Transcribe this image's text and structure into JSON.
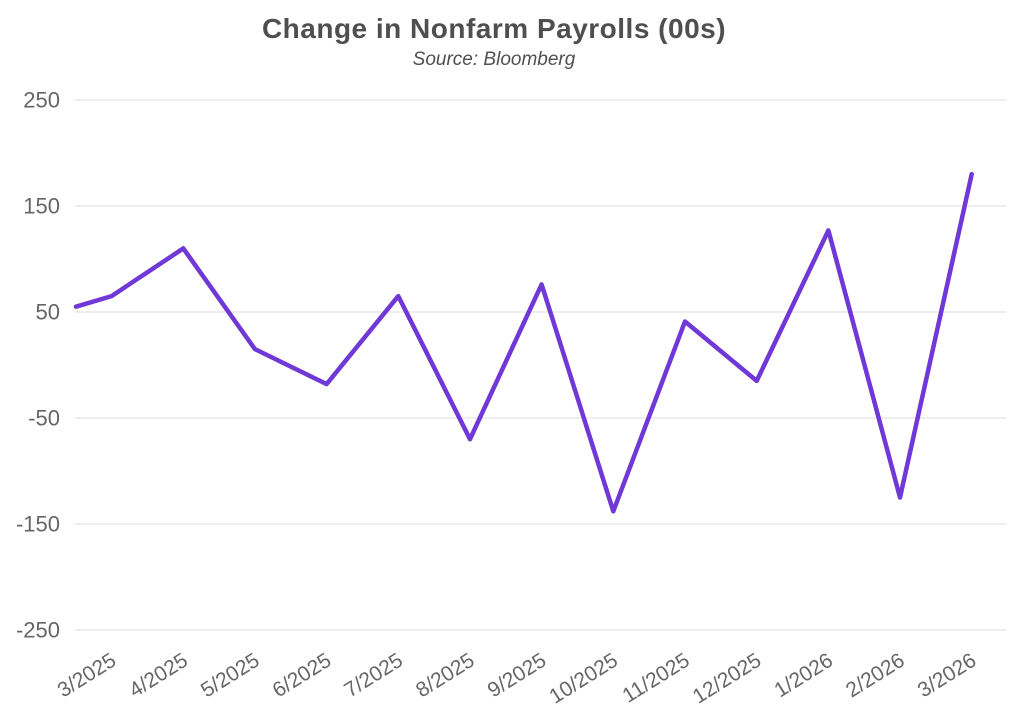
{
  "header": {
    "title": "Change in Nonfarm Payrolls (00s)",
    "subtitle": "Source: Bloomberg"
  },
  "colors": {
    "background": "#ffffff",
    "title_text": "#4f4f4f",
    "tick_text": "#666666",
    "gridline": "#e9e9e9",
    "line": "#7038d6"
  },
  "chart_data": {
    "type": "line",
    "title": "Change in Nonfarm Payrolls (00s)",
    "subtitle": "Source: Bloomberg",
    "categories": [
      "3/2025",
      "4/2025",
      "5/2025",
      "6/2025",
      "7/2025",
      "8/2025",
      "9/2025",
      "10/2025",
      "11/2025",
      "12/2025",
      "1/2026",
      "2/2026",
      "3/2026"
    ],
    "values": [
      65,
      110,
      15,
      -18,
      65,
      -70,
      76,
      -138,
      41,
      -15,
      127,
      -125,
      180
    ],
    "ylim": [
      -250,
      250
    ],
    "yticks": [
      250,
      150,
      50,
      -50,
      -150,
      -250
    ],
    "grid": "horizontal",
    "legend": "none",
    "markers": "none",
    "line_color": "#7038d6",
    "lead_in_edge_value": 55
  }
}
